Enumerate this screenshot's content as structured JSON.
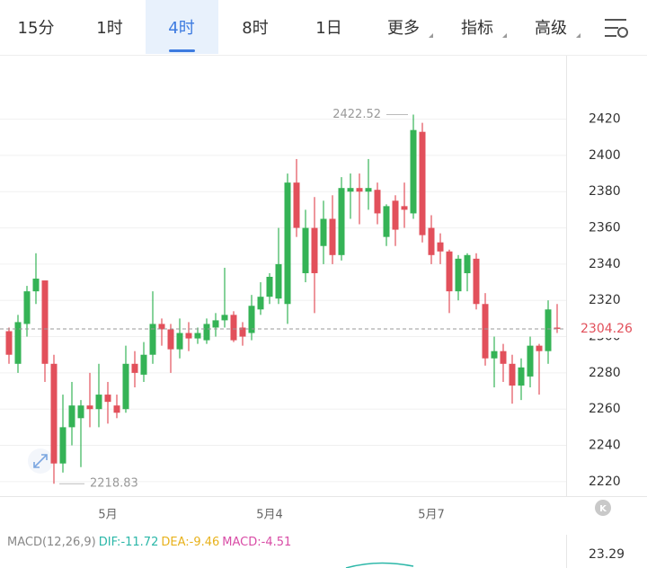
{
  "tabs": {
    "items": [
      "15分",
      "1时",
      "4时",
      "8时",
      "1日",
      "更多",
      "指标",
      "高级"
    ],
    "selected": 2,
    "dropdown": [
      5,
      6,
      7
    ]
  },
  "chart_data": {
    "type": "candlestick",
    "categories": [
      null,
      null,
      null,
      null,
      null,
      null,
      null,
      null,
      null,
      null,
      null,
      "5月",
      null,
      null,
      null,
      null,
      null,
      null,
      null,
      null,
      null,
      null,
      null,
      null,
      null,
      null,
      null,
      null,
      null,
      "5月4",
      null,
      null,
      null,
      null,
      null,
      null,
      null,
      null,
      null,
      null,
      null,
      null,
      null,
      null,
      null,
      null,
      null,
      "5月7",
      null,
      null,
      null,
      null,
      null,
      null,
      null,
      null,
      null,
      null,
      null,
      null,
      null,
      null
    ],
    "open": [
      2303,
      2285,
      2307,
      2325,
      2331,
      2285,
      2230,
      2250,
      2255,
      2262,
      2260,
      2268,
      2262,
      2260,
      2285,
      2279,
      2290,
      2307,
      2304,
      2293,
      2302,
      2299,
      2298,
      2305,
      2309,
      2312,
      2305,
      2302,
      2315,
      2322,
      2321,
      2318,
      2385,
      2335,
      2360,
      2350,
      2365,
      2345,
      2380,
      2382,
      2380,
      2381,
      2355,
      2375,
      2372,
      2368,
      2413,
      2360,
      2352,
      2347,
      2325,
      2335,
      2343,
      2318,
      2288,
      2292,
      2285,
      2273,
      2278,
      2295,
      2292,
      2305
    ],
    "high": [
      2305,
      2312,
      2328,
      2346,
      2331,
      2290,
      2268,
      2275,
      2265,
      2280,
      2285,
      2275,
      2268,
      2295,
      2292,
      2297,
      2325,
      2310,
      2307,
      2310,
      2308,
      2305,
      2310,
      2313,
      2338,
      2314,
      2308,
      2323,
      2330,
      2335,
      2360,
      2390,
      2398,
      2370,
      2377,
      2375,
      2378,
      2388,
      2390,
      2390,
      2398,
      2385,
      2373,
      2378,
      2385,
      2422.52,
      2418,
      2367,
      2357,
      2348,
      2345,
      2346,
      2346,
      2324,
      2300,
      2296,
      2290,
      2288,
      2300,
      2296,
      2320,
      2318
    ],
    "low": [
      2285,
      2280,
      2300,
      2318,
      2275,
      2218.83,
      2225,
      2240,
      2228,
      2250,
      2250,
      2252,
      2255,
      2258,
      2272,
      2275,
      2285,
      2295,
      2280,
      2288,
      2292,
      2296,
      2296,
      2300,
      2305,
      2297,
      2295,
      2298,
      2312,
      2318,
      2318,
      2307,
      2355,
      2330,
      2313,
      2340,
      2340,
      2342,
      2365,
      2362,
      2370,
      2362,
      2350,
      2350,
      2360,
      2365,
      2352,
      2340,
      2340,
      2313,
      2320,
      2325,
      2315,
      2284,
      2272,
      2275,
      2263,
      2265,
      2272,
      2268,
      2285,
      2302
    ],
    "close": [
      2290,
      2308,
      2325,
      2332,
      2285,
      2230,
      2250,
      2262,
      2262,
      2260,
      2268,
      2264,
      2258,
      2285,
      2280,
      2290,
      2307,
      2304,
      2293,
      2302,
      2299,
      2302,
      2307,
      2309,
      2312,
      2298,
      2300,
      2317,
      2322,
      2333,
      2340,
      2385,
      2360,
      2360,
      2335,
      2365,
      2345,
      2382,
      2382,
      2380,
      2382,
      2368,
      2372,
      2359,
      2370,
      2414,
      2356,
      2345,
      2347,
      2325,
      2343,
      2345,
      2318,
      2288,
      2292,
      2285,
      2273,
      2283,
      2295,
      2292,
      2315,
      2304.26
    ],
    "up_color": "#35b356",
    "down_color": "#e2505b",
    "ylim": [
      2212,
      2455
    ],
    "yticks": [
      2220,
      2240,
      2260,
      2280,
      2300,
      2320,
      2340,
      2360,
      2380,
      2400,
      2420
    ],
    "grid": true,
    "max_index": 45,
    "min_index": 5
  },
  "indicator": {
    "name": "MACD(12,26,9)",
    "items": [
      {
        "label": "DIF:",
        "value": -11.72,
        "color": "#2bb7a8"
      },
      {
        "label": "DEA:",
        "value": -9.46,
        "color": "#e8b21c"
      },
      {
        "label": "MACD:",
        "value": -4.51,
        "color": "#d94ca6"
      }
    ],
    "yticks": [
      23.29
    ]
  }
}
